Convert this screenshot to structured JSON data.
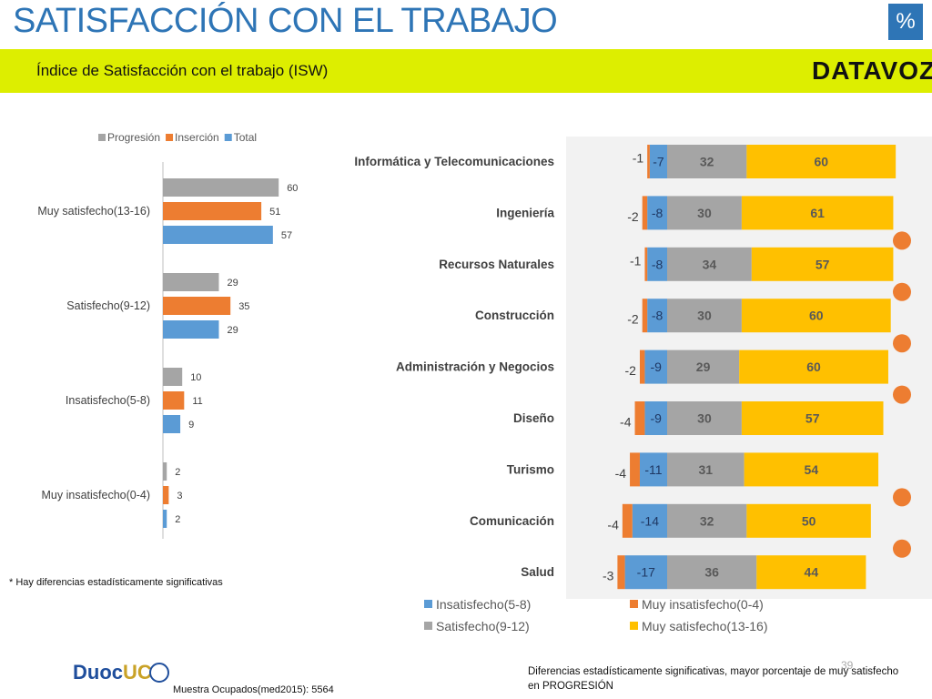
{
  "header": {
    "title": "SATISFACCIÓN CON EL TRABAJO",
    "badge": "%",
    "subtitle": "Índice de Satisfacción con el trabajo (ISW)",
    "logo_text": "DATAVOZ"
  },
  "footer": {
    "footnote": "* Hay diferencias estadísticamente significativas",
    "sample": "Muestra Ocupados(med2015): 5564",
    "note": "Diferencias estadísticamente significativas, mayor porcentaje  de muy satisfecho en PROGRESIÓN",
    "page_number": "39",
    "duoc_logo_text": "Duoc",
    "duoc_logo_suffix": "UC"
  },
  "colors": {
    "progresion": "#a5a5a5",
    "insercion": "#ed7d31",
    "total": "#5b9bd5",
    "muy_satisfecho": "#ffc000",
    "significance_dot": "#ed7d31",
    "plot_bg": "#f2f2f2"
  },
  "chart_data": [
    {
      "type": "bar",
      "orientation": "horizontal",
      "categories": [
        "Muy satisfecho(13-16)",
        "Satisfecho(9-12)",
        "Insatisfecho(5-8)",
        "Muy insatisfecho(0-4)"
      ],
      "series": [
        {
          "name": "Progresión",
          "values": [
            60,
            29,
            10,
            2
          ]
        },
        {
          "name": "Inserción",
          "values": [
            51,
            35,
            11,
            3
          ]
        },
        {
          "name": "Total",
          "values": [
            57,
            29,
            9,
            2
          ]
        }
      ],
      "legend_position": "top",
      "grid": false
    },
    {
      "type": "bar",
      "orientation": "horizontal",
      "stacked": "diverging",
      "categories": [
        "Informática y Telecomunicaciones",
        "Ingeniería",
        "Recursos Naturales",
        "Construcción",
        "Administración y Negocios",
        "Diseño",
        "Turismo",
        "Comunicación",
        "Salud"
      ],
      "series": [
        {
          "name": "Muy insatisfecho(0-4)",
          "values": [
            -1,
            -2,
            -1,
            -2,
            -2,
            -4,
            -4,
            -4,
            -3
          ]
        },
        {
          "name": "Insatisfecho(5-8)",
          "values": [
            -7,
            -8,
            -8,
            -8,
            -9,
            -9,
            -11,
            -14,
            -17
          ]
        },
        {
          "name": "Satisfecho(9-12)",
          "values": [
            32,
            30,
            34,
            30,
            29,
            30,
            31,
            32,
            36
          ]
        },
        {
          "name": "Muy satisfecho(13-16)",
          "values": [
            60,
            61,
            57,
            60,
            60,
            57,
            54,
            50,
            44
          ]
        }
      ],
      "significant": [
        false,
        true,
        true,
        true,
        true,
        false,
        true,
        true,
        false
      ],
      "legend_position": "bottom",
      "grid": false
    }
  ]
}
